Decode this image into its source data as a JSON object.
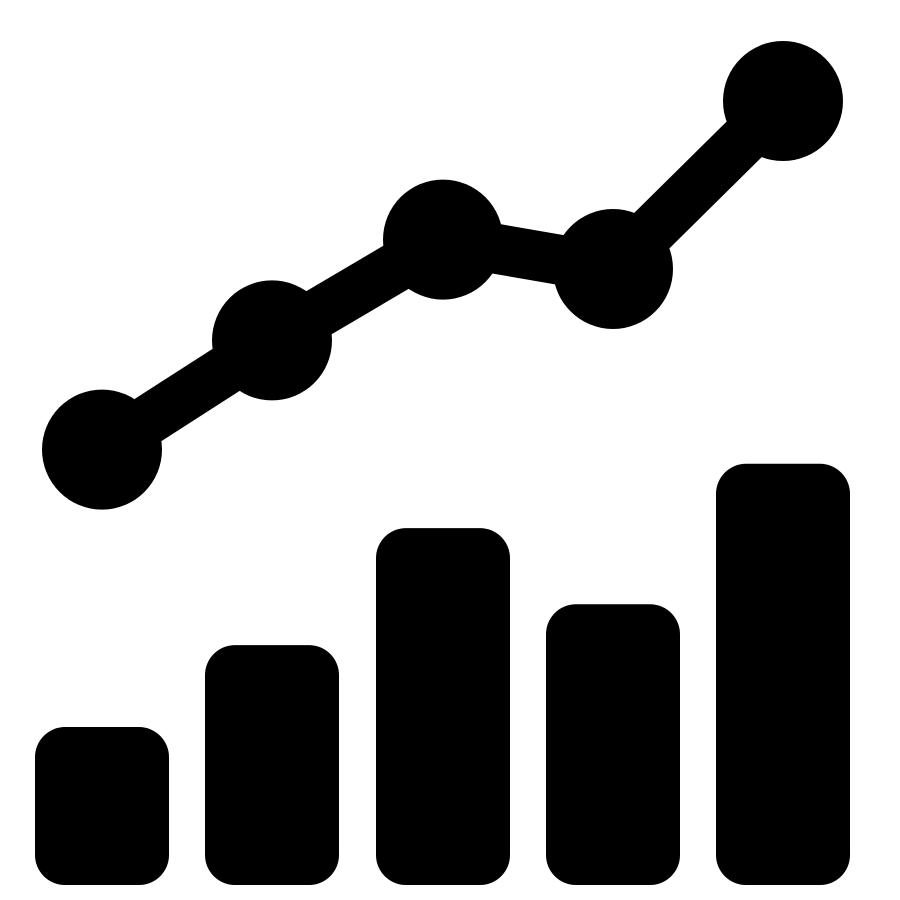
{
  "icon": {
    "name": "bar-and-line-growth-chart-icon",
    "color": "#000000",
    "background": "#ffffff",
    "bars": [
      {
        "level": 0.27
      },
      {
        "level": 0.41
      },
      {
        "level": 0.61
      },
      {
        "level": 0.48
      },
      {
        "level": 0.72
      }
    ],
    "line_points": [
      {
        "level": 0.12
      },
      {
        "level": 0.38
      },
      {
        "level": 0.62
      },
      {
        "level": 0.55
      },
      {
        "level": 0.95
      }
    ]
  }
}
